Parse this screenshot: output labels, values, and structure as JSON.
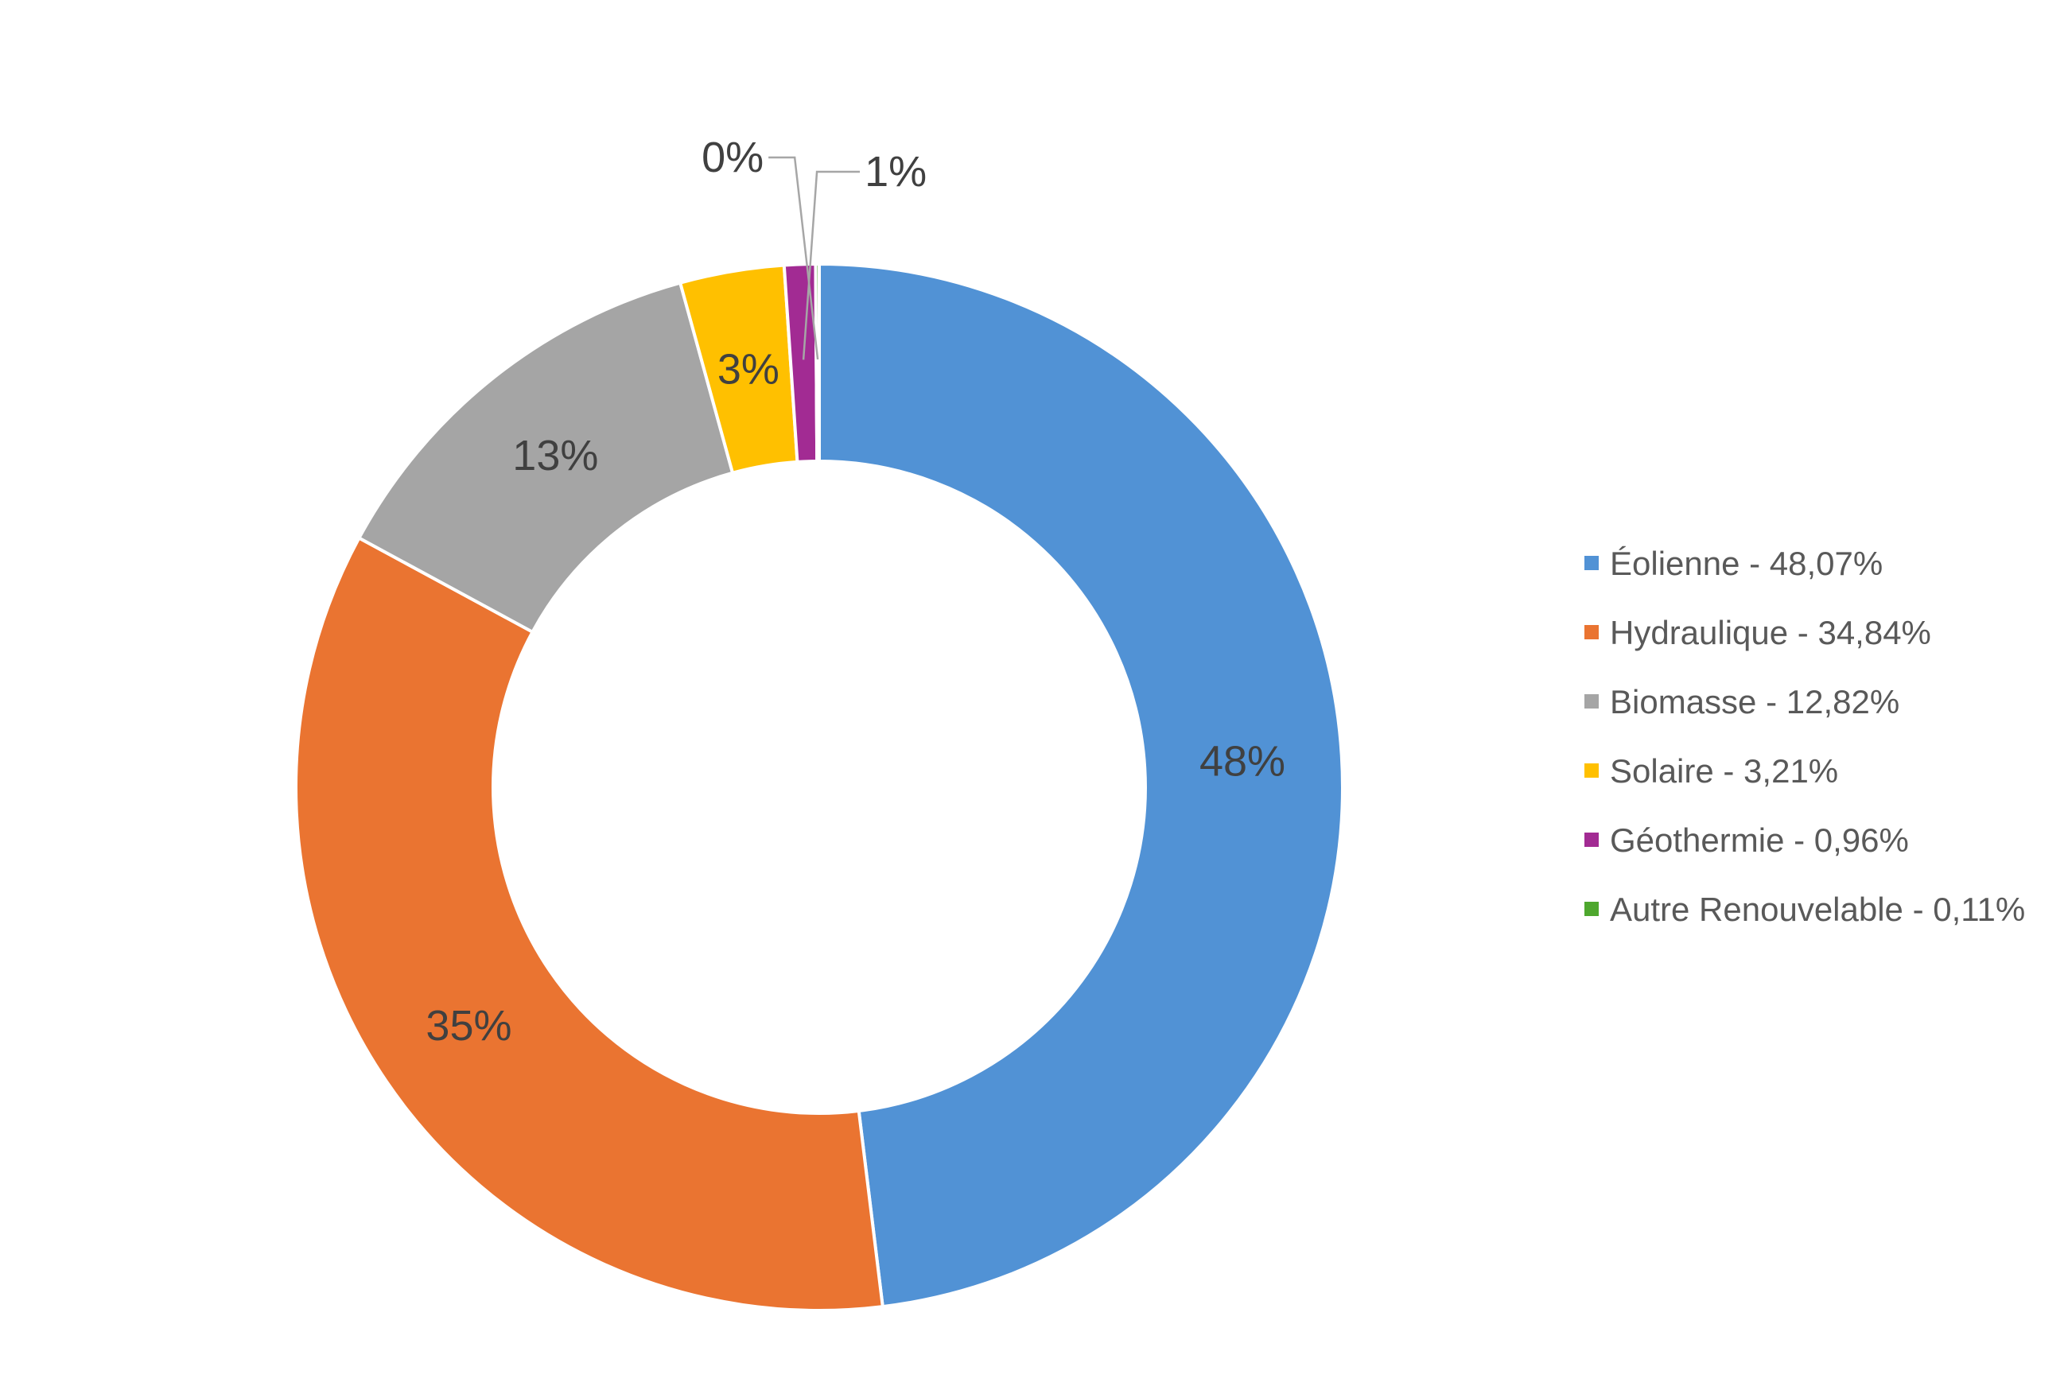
{
  "page": {
    "background_color": "#FFFFFF"
  },
  "chart_data": {
    "type": "pie",
    "subtype": "donut",
    "title": "",
    "unit": "%",
    "direction": "clockwise",
    "start_angle_deg": 0,
    "hole_ratio": 0.62,
    "grid": false,
    "legend_position": "right",
    "slice_border_color": "#FFFFFF",
    "label_color": "#404040",
    "legend_text_color": "#595959",
    "leader_line_color": "#A6A6A6",
    "slices": [
      {
        "label": "Éolienne",
        "value": 48.07,
        "color": "#5192D5",
        "data_label": "48%",
        "label_placement": "inside"
      },
      {
        "label": "Hydraulique",
        "value": 34.84,
        "color": "#EA7431",
        "data_label": "35%",
        "label_placement": "inside"
      },
      {
        "label": "Biomasse",
        "value": 12.82,
        "color": "#A5A5A5",
        "data_label": "13%",
        "label_placement": "inside"
      },
      {
        "label": "Solaire",
        "value": 3.21,
        "color": "#FFC000",
        "data_label": "3%",
        "label_placement": "inside"
      },
      {
        "label": "Géothermie",
        "value": 0.96,
        "color": "#A22B93",
        "data_label": "1%",
        "label_placement": "outside-right"
      },
      {
        "label": "Autre Renouvelable",
        "value": 0.11,
        "color": "#4EA72E",
        "data_label": "0%",
        "label_placement": "outside-left"
      }
    ],
    "legend": [
      {
        "text": "Éolienne - 48,07%",
        "color": "#5192D5"
      },
      {
        "text": "Hydraulique - 34,84%",
        "color": "#EA7431"
      },
      {
        "text": "Biomasse - 12,82%",
        "color": "#A5A5A5"
      },
      {
        "text": "Solaire - 3,21%",
        "color": "#FFC000"
      },
      {
        "text": "Géothermie - 0,96%",
        "color": "#A22B93"
      },
      {
        "text": "Autre Renouvelable - 0,11%",
        "color": "#4EA72E"
      }
    ]
  }
}
